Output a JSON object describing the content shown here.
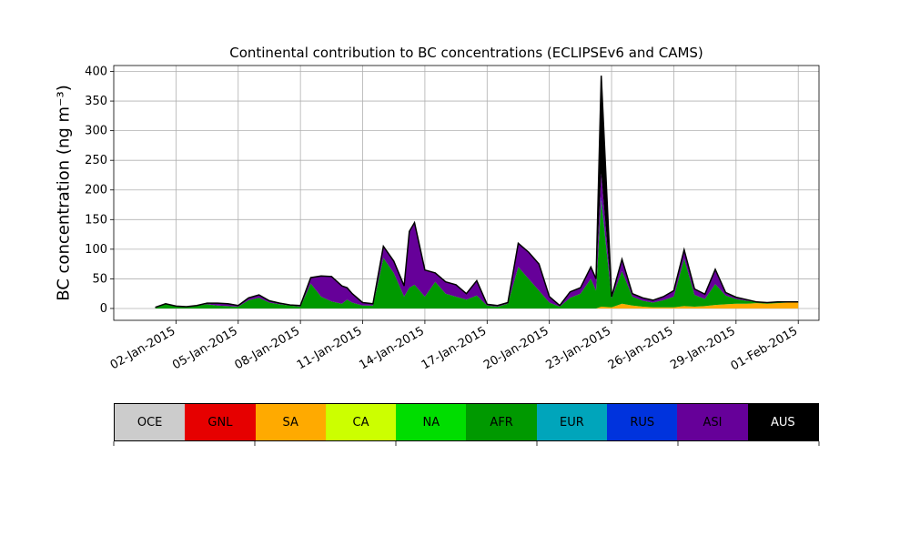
{
  "chart_data": {
    "type": "area",
    "stacked": true,
    "title": "Continental contribution to BC concentrations (ECLIPSEv6 and CAMS)",
    "ylabel": "BC concentration (ng m⁻³)",
    "xlabel": "",
    "ylim": [
      -20,
      410
    ],
    "xlim": [
      "2014-12-30",
      "2015-02-02"
    ],
    "yticks": [
      0,
      50,
      100,
      150,
      200,
      250,
      300,
      350,
      400
    ],
    "xticks": [
      "02-Jan-2015",
      "05-Jan-2015",
      "08-Jan-2015",
      "11-Jan-2015",
      "14-Jan-2015",
      "17-Jan-2015",
      "20-Jan-2015",
      "23-Jan-2015",
      "26-Jan-2015",
      "29-Jan-2015",
      "01-Feb-2015"
    ],
    "grid": true,
    "x": [
      "2015-01-01 00:00",
      "2015-01-01 12:00",
      "2015-01-02 00:00",
      "2015-01-02 12:00",
      "2015-01-03 00:00",
      "2015-01-03 12:00",
      "2015-01-04 00:00",
      "2015-01-04 12:00",
      "2015-01-05 00:00",
      "2015-01-05 12:00",
      "2015-01-06 00:00",
      "2015-01-06 12:00",
      "2015-01-07 00:00",
      "2015-01-07 12:00",
      "2015-01-08 00:00",
      "2015-01-08 12:00",
      "2015-01-09 00:00",
      "2015-01-09 12:00",
      "2015-01-10 00:00",
      "2015-01-10 06:00",
      "2015-01-10 12:00",
      "2015-01-11 00:00",
      "2015-01-11 12:00",
      "2015-01-12 00:00",
      "2015-01-12 12:00",
      "2015-01-13 00:00",
      "2015-01-13 06:00",
      "2015-01-13 12:00",
      "2015-01-14 00:00",
      "2015-01-14 12:00",
      "2015-01-15 00:00",
      "2015-01-15 12:00",
      "2015-01-16 00:00",
      "2015-01-16 12:00",
      "2015-01-17 00:00",
      "2015-01-17 12:00",
      "2015-01-18 00:00",
      "2015-01-18 12:00",
      "2015-01-19 00:00",
      "2015-01-19 12:00",
      "2015-01-20 00:00",
      "2015-01-20 12:00",
      "2015-01-21 00:00",
      "2015-01-21 12:00",
      "2015-01-22 00:00",
      "2015-01-22 06:00",
      "2015-01-22 12:00",
      "2015-01-23 00:00",
      "2015-01-23 12:00",
      "2015-01-24 00:00",
      "2015-01-24 12:00",
      "2015-01-25 00:00",
      "2015-01-25 12:00",
      "2015-01-26 00:00",
      "2015-01-26 12:00",
      "2015-01-27 00:00",
      "2015-01-27 12:00",
      "2015-01-28 00:00",
      "2015-01-28 12:00",
      "2015-01-29 00:00",
      "2015-01-29 12:00",
      "2015-01-30 00:00",
      "2015-01-30 12:00",
      "2015-01-31 00:00",
      "2015-01-31 12:00",
      "2015-02-01 00:00"
    ],
    "series": [
      {
        "name": "OCE",
        "color": "#cccccc",
        "values": [
          0,
          0,
          0,
          0,
          0,
          0,
          0,
          0,
          0,
          0,
          0,
          0,
          0,
          0,
          0,
          0,
          0,
          0,
          0,
          0,
          0,
          0,
          0,
          0,
          0,
          0,
          0,
          0,
          0,
          0,
          0,
          0,
          0,
          0,
          0,
          0,
          0,
          0,
          0,
          0,
          0,
          0,
          0,
          0,
          0,
          0,
          0,
          0,
          0,
          0,
          0,
          0,
          0,
          0,
          0,
          0,
          0,
          0,
          0,
          0,
          0,
          0,
          0,
          0,
          0,
          0
        ]
      },
      {
        "name": "GNL",
        "color": "#e60000",
        "values": [
          0,
          0,
          0,
          0,
          0,
          0,
          0,
          0,
          0,
          0,
          0,
          0,
          0,
          0,
          0,
          0,
          0,
          0,
          0,
          0,
          0,
          0,
          0,
          0,
          0,
          0,
          0,
          0,
          0,
          0,
          0,
          0,
          0,
          0,
          0,
          0,
          0,
          0,
          0,
          0,
          0,
          0,
          0,
          0,
          0,
          0,
          0,
          0,
          0,
          0,
          0,
          0,
          0,
          0,
          0,
          0,
          0,
          0,
          0,
          0,
          0,
          0,
          0,
          0,
          0,
          0
        ]
      },
      {
        "name": "SA",
        "color": "#ffaa00",
        "values": [
          0,
          0,
          0,
          0,
          0,
          0,
          0,
          0,
          0,
          0,
          0,
          0,
          0,
          0,
          0,
          0,
          0,
          0,
          0,
          0,
          0,
          0,
          0,
          0,
          0,
          0,
          0,
          0,
          0,
          0,
          0,
          0,
          0,
          0,
          0,
          0,
          0,
          0,
          0,
          0,
          0,
          0,
          0,
          0,
          0,
          0,
          3,
          2,
          8,
          5,
          3,
          2,
          2,
          2,
          4,
          3,
          4,
          6,
          7,
          8,
          8,
          9,
          8,
          9,
          10,
          10
        ]
      },
      {
        "name": "CA",
        "color": "#ccff00",
        "values": [
          0,
          0,
          0,
          0,
          0,
          0,
          0,
          0,
          0,
          0,
          0,
          0,
          0,
          0,
          0,
          0,
          0,
          0,
          0,
          0,
          0,
          0,
          0,
          0,
          0,
          0,
          0,
          0,
          0,
          0,
          0,
          0,
          0,
          0,
          0,
          0,
          0,
          0,
          0,
          0,
          0,
          0,
          0,
          0,
          0,
          0,
          0,
          0,
          0,
          0,
          0,
          0,
          0,
          0,
          0,
          0,
          0,
          0,
          0,
          0,
          0,
          0,
          0,
          0,
          0,
          0
        ]
      },
      {
        "name": "NA",
        "color": "#00dd00",
        "values": [
          0,
          0,
          0,
          0,
          0,
          0,
          0,
          0,
          0,
          0,
          0,
          0,
          0,
          0,
          0,
          0,
          0,
          0,
          0,
          0,
          0,
          0,
          0,
          0,
          0,
          0,
          0,
          0,
          0,
          0,
          0,
          0,
          0,
          0,
          0,
          0,
          0,
          0,
          0,
          0,
          0,
          0,
          0,
          0,
          0,
          0,
          0,
          0,
          0,
          0,
          0,
          0,
          0,
          0,
          0,
          0,
          0,
          0,
          0,
          0,
          0,
          0,
          0,
          0,
          0,
          0
        ]
      },
      {
        "name": "AFR",
        "color": "#009900",
        "values": [
          2,
          8,
          4,
          3,
          5,
          7,
          5,
          4,
          3,
          14,
          18,
          10,
          7,
          5,
          3,
          42,
          20,
          12,
          8,
          15,
          10,
          5,
          5,
          85,
          60,
          20,
          35,
          40,
          20,
          45,
          25,
          20,
          15,
          22,
          5,
          3,
          8,
          70,
          50,
          30,
          10,
          3,
          18,
          25,
          50,
          30,
          180,
          15,
          55,
          15,
          10,
          8,
          12,
          18,
          80,
          20,
          12,
          35,
          15,
          8,
          5,
          2,
          2,
          2,
          1,
          1
        ]
      },
      {
        "name": "EUR",
        "color": "#00a5bb",
        "values": [
          0,
          0,
          0,
          0,
          0,
          0,
          0,
          0,
          0,
          0,
          0,
          0,
          0,
          0,
          0,
          0,
          0,
          0,
          0,
          0,
          0,
          0,
          0,
          0,
          0,
          0,
          0,
          0,
          0,
          0,
          0,
          0,
          0,
          0,
          0,
          0,
          0,
          0,
          0,
          0,
          0,
          0,
          0,
          0,
          0,
          0,
          0,
          0,
          0,
          0,
          0,
          0,
          0,
          0,
          0,
          0,
          0,
          0,
          0,
          0,
          0,
          0,
          0,
          0,
          0,
          0
        ]
      },
      {
        "name": "RUS",
        "color": "#0033dd",
        "values": [
          0,
          0,
          0,
          0,
          0,
          0,
          0,
          0,
          0,
          0,
          0,
          0,
          0,
          0,
          0,
          0,
          0,
          0,
          0,
          0,
          0,
          0,
          0,
          0,
          0,
          0,
          0,
          0,
          0,
          0,
          0,
          0,
          0,
          0,
          0,
          0,
          0,
          0,
          0,
          0,
          0,
          0,
          0,
          0,
          0,
          0,
          5,
          0,
          0,
          0,
          0,
          0,
          0,
          0,
          0,
          0,
          0,
          0,
          0,
          0,
          0,
          0,
          0,
          0,
          0,
          0
        ]
      },
      {
        "name": "ASI",
        "color": "#660099",
        "values": [
          0,
          0,
          0,
          0,
          0,
          2,
          4,
          4,
          2,
          4,
          5,
          3,
          2,
          1,
          2,
          10,
          35,
          42,
          30,
          20,
          15,
          5,
          3,
          20,
          20,
          18,
          95,
          105,
          45,
          15,
          20,
          20,
          10,
          25,
          2,
          2,
          2,
          40,
          45,
          45,
          10,
          2,
          10,
          10,
          20,
          20,
          40,
          3,
          20,
          5,
          5,
          4,
          6,
          10,
          15,
          10,
          8,
          25,
          5,
          3,
          2,
          0,
          0,
          0,
          0,
          0
        ]
      },
      {
        "name": "AUS",
        "color": "#000000",
        "values": [
          0,
          0,
          0,
          0,
          0,
          0,
          0,
          0,
          0,
          0,
          0,
          0,
          0,
          0,
          0,
          0,
          0,
          0,
          0,
          0,
          0,
          0,
          0,
          0,
          0,
          0,
          0,
          0,
          0,
          0,
          0,
          0,
          0,
          0,
          0,
          0,
          0,
          0,
          0,
          0,
          0,
          0,
          0,
          0,
          0,
          0,
          165,
          0,
          0,
          0,
          0,
          0,
          0,
          0,
          0,
          0,
          0,
          0,
          0,
          0,
          0,
          0,
          0,
          0,
          0,
          0
        ]
      }
    ],
    "colorbar": {
      "labels": [
        "OCE",
        "GNL",
        "SA",
        "CA",
        "NA",
        "AFR",
        "EUR",
        "RUS",
        "ASI",
        "AUS"
      ],
      "colors": [
        "#cccccc",
        "#e60000",
        "#ffaa00",
        "#ccff00",
        "#00dd00",
        "#009900",
        "#00a5bb",
        "#0033dd",
        "#660099",
        "#000000"
      ],
      "text_colors": [
        "#000000",
        "#000000",
        "#000000",
        "#000000",
        "#000000",
        "#000000",
        "#000000",
        "#000000",
        "#000000",
        "#ffffff"
      ]
    }
  }
}
